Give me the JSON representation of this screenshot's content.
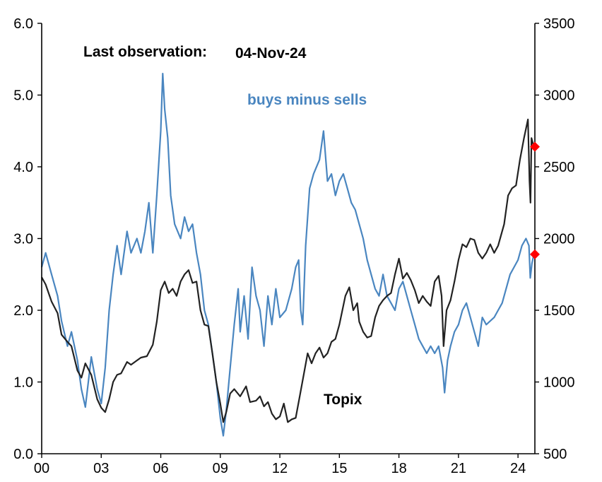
{
  "chart_data": {
    "type": "line",
    "title": "",
    "annotations": {
      "last_obs_label": "Last observation:",
      "last_obs_date": "04-Nov-24",
      "series1_label": "buys minus sells",
      "series2_label": "Topix"
    },
    "x_axis": {
      "range": [
        2000,
        2024.85
      ],
      "ticks": [
        {
          "value": 2000,
          "label": "00"
        },
        {
          "value": 2003,
          "label": "03"
        },
        {
          "value": 2006,
          "label": "06"
        },
        {
          "value": 2009,
          "label": "09"
        },
        {
          "value": 2012,
          "label": "12"
        },
        {
          "value": 2015,
          "label": "15"
        },
        {
          "value": 2018,
          "label": "18"
        },
        {
          "value": 2021,
          "label": "21"
        },
        {
          "value": 2024,
          "label": "24"
        }
      ]
    },
    "y_left": {
      "range": [
        0,
        6
      ],
      "ticks": [
        {
          "value": 0,
          "label": "0.0"
        },
        {
          "value": 1,
          "label": "1.0"
        },
        {
          "value": 2,
          "label": "2.0"
        },
        {
          "value": 3,
          "label": "3.0"
        },
        {
          "value": 4,
          "label": "4.0"
        },
        {
          "value": 5,
          "label": "5.0"
        },
        {
          "value": 6,
          "label": "6.0"
        }
      ]
    },
    "y_right": {
      "range": [
        500,
        3500
      ],
      "ticks": [
        {
          "value": 500,
          "label": "500"
        },
        {
          "value": 1000,
          "label": "1000"
        },
        {
          "value": 1500,
          "label": "1500"
        },
        {
          "value": 2000,
          "label": "2000"
        },
        {
          "value": 2500,
          "label": "2500"
        },
        {
          "value": 3000,
          "label": "3000"
        },
        {
          "value": 3500,
          "label": "3500"
        }
      ]
    },
    "series": [
      {
        "name": "buys minus sells",
        "axis": "left",
        "color": "#4a86c0",
        "points": [
          [
            2000.0,
            2.6
          ],
          [
            2000.2,
            2.8
          ],
          [
            2000.5,
            2.5
          ],
          [
            2000.8,
            2.2
          ],
          [
            2001.0,
            1.85
          ],
          [
            2001.3,
            1.5
          ],
          [
            2001.5,
            1.7
          ],
          [
            2001.8,
            1.3
          ],
          [
            2002.0,
            0.9
          ],
          [
            2002.2,
            0.65
          ],
          [
            2002.35,
            1.0
          ],
          [
            2002.5,
            1.35
          ],
          [
            2002.8,
            0.9
          ],
          [
            2003.0,
            0.7
          ],
          [
            2003.2,
            1.2
          ],
          [
            2003.4,
            2.0
          ],
          [
            2003.6,
            2.5
          ],
          [
            2003.8,
            2.9
          ],
          [
            2004.0,
            2.5
          ],
          [
            2004.3,
            3.1
          ],
          [
            2004.5,
            2.8
          ],
          [
            2004.8,
            3.0
          ],
          [
            2005.0,
            2.8
          ],
          [
            2005.2,
            3.1
          ],
          [
            2005.4,
            3.5
          ],
          [
            2005.6,
            2.8
          ],
          [
            2005.8,
            3.6
          ],
          [
            2006.0,
            4.5
          ],
          [
            2006.1,
            5.3
          ],
          [
            2006.2,
            4.8
          ],
          [
            2006.35,
            4.4
          ],
          [
            2006.5,
            3.6
          ],
          [
            2006.7,
            3.2
          ],
          [
            2007.0,
            3.0
          ],
          [
            2007.2,
            3.3
          ],
          [
            2007.4,
            3.1
          ],
          [
            2007.6,
            3.2
          ],
          [
            2007.8,
            2.8
          ],
          [
            2008.0,
            2.5
          ],
          [
            2008.2,
            2.0
          ],
          [
            2008.4,
            1.8
          ],
          [
            2008.6,
            1.4
          ],
          [
            2008.8,
            1.0
          ],
          [
            2009.0,
            0.5
          ],
          [
            2009.15,
            0.25
          ],
          [
            2009.3,
            0.6
          ],
          [
            2009.5,
            1.2
          ],
          [
            2009.7,
            1.8
          ],
          [
            2009.9,
            2.3
          ],
          [
            2010.0,
            1.7
          ],
          [
            2010.2,
            2.2
          ],
          [
            2010.4,
            1.6
          ],
          [
            2010.6,
            2.6
          ],
          [
            2010.8,
            2.2
          ],
          [
            2011.0,
            2.0
          ],
          [
            2011.2,
            1.5
          ],
          [
            2011.4,
            2.2
          ],
          [
            2011.6,
            1.8
          ],
          [
            2011.8,
            2.3
          ],
          [
            2012.0,
            1.9
          ],
          [
            2012.3,
            2.0
          ],
          [
            2012.6,
            2.3
          ],
          [
            2012.8,
            2.6
          ],
          [
            2012.95,
            2.7
          ],
          [
            2013.05,
            2.0
          ],
          [
            2013.15,
            1.8
          ],
          [
            2013.3,
            2.9
          ],
          [
            2013.5,
            3.7
          ],
          [
            2013.7,
            3.9
          ],
          [
            2014.0,
            4.1
          ],
          [
            2014.2,
            4.5
          ],
          [
            2014.4,
            3.8
          ],
          [
            2014.6,
            3.9
          ],
          [
            2014.8,
            3.6
          ],
          [
            2015.0,
            3.8
          ],
          [
            2015.2,
            3.9
          ],
          [
            2015.4,
            3.7
          ],
          [
            2015.6,
            3.5
          ],
          [
            2015.8,
            3.4
          ],
          [
            2016.0,
            3.2
          ],
          [
            2016.2,
            3.0
          ],
          [
            2016.4,
            2.7
          ],
          [
            2016.6,
            2.5
          ],
          [
            2016.8,
            2.3
          ],
          [
            2017.0,
            2.2
          ],
          [
            2017.2,
            2.5
          ],
          [
            2017.4,
            2.2
          ],
          [
            2017.6,
            2.1
          ],
          [
            2017.8,
            2.0
          ],
          [
            2018.0,
            2.3
          ],
          [
            2018.2,
            2.4
          ],
          [
            2018.4,
            2.2
          ],
          [
            2018.6,
            2.0
          ],
          [
            2018.8,
            1.8
          ],
          [
            2019.0,
            1.6
          ],
          [
            2019.2,
            1.5
          ],
          [
            2019.4,
            1.4
          ],
          [
            2019.6,
            1.5
          ],
          [
            2019.8,
            1.4
          ],
          [
            2020.0,
            1.5
          ],
          [
            2020.2,
            1.2
          ],
          [
            2020.3,
            0.85
          ],
          [
            2020.45,
            1.3
          ],
          [
            2020.6,
            1.5
          ],
          [
            2020.8,
            1.7
          ],
          [
            2021.0,
            1.8
          ],
          [
            2021.2,
            2.0
          ],
          [
            2021.4,
            2.1
          ],
          [
            2021.6,
            1.9
          ],
          [
            2021.8,
            1.7
          ],
          [
            2022.0,
            1.5
          ],
          [
            2022.2,
            1.9
          ],
          [
            2022.4,
            1.8
          ],
          [
            2022.6,
            1.85
          ],
          [
            2022.8,
            1.9
          ],
          [
            2023.0,
            2.0
          ],
          [
            2023.2,
            2.1
          ],
          [
            2023.4,
            2.3
          ],
          [
            2023.6,
            2.5
          ],
          [
            2023.8,
            2.6
          ],
          [
            2024.0,
            2.7
          ],
          [
            2024.2,
            2.9
          ],
          [
            2024.4,
            3.0
          ],
          [
            2024.55,
            2.9
          ],
          [
            2024.62,
            2.45
          ],
          [
            2024.7,
            2.65
          ],
          [
            2024.8,
            2.78
          ]
        ]
      },
      {
        "name": "Topix",
        "axis": "right",
        "color": "#222222",
        "points": [
          [
            2000.0,
            1730
          ],
          [
            2000.2,
            1680
          ],
          [
            2000.5,
            1560
          ],
          [
            2000.8,
            1480
          ],
          [
            2001.0,
            1330
          ],
          [
            2001.3,
            1280
          ],
          [
            2001.5,
            1250
          ],
          [
            2001.8,
            1080
          ],
          [
            2002.0,
            1030
          ],
          [
            2002.2,
            1130
          ],
          [
            2002.5,
            1050
          ],
          [
            2002.8,
            880
          ],
          [
            2003.0,
            820
          ],
          [
            2003.2,
            790
          ],
          [
            2003.4,
            880
          ],
          [
            2003.6,
            1000
          ],
          [
            2003.8,
            1050
          ],
          [
            2004.0,
            1060
          ],
          [
            2004.3,
            1140
          ],
          [
            2004.5,
            1120
          ],
          [
            2004.8,
            1150
          ],
          [
            2005.0,
            1170
          ],
          [
            2005.3,
            1180
          ],
          [
            2005.6,
            1260
          ],
          [
            2005.8,
            1420
          ],
          [
            2006.0,
            1640
          ],
          [
            2006.2,
            1700
          ],
          [
            2006.4,
            1620
          ],
          [
            2006.6,
            1650
          ],
          [
            2006.8,
            1600
          ],
          [
            2007.0,
            1700
          ],
          [
            2007.2,
            1750
          ],
          [
            2007.4,
            1780
          ],
          [
            2007.6,
            1690
          ],
          [
            2007.8,
            1700
          ],
          [
            2008.0,
            1500
          ],
          [
            2008.2,
            1400
          ],
          [
            2008.4,
            1390
          ],
          [
            2008.6,
            1200
          ],
          [
            2008.8,
            1000
          ],
          [
            2009.0,
            850
          ],
          [
            2009.15,
            720
          ],
          [
            2009.3,
            790
          ],
          [
            2009.5,
            920
          ],
          [
            2009.7,
            950
          ],
          [
            2010.0,
            900
          ],
          [
            2010.3,
            970
          ],
          [
            2010.5,
            860
          ],
          [
            2010.8,
            870
          ],
          [
            2011.0,
            900
          ],
          [
            2011.2,
            830
          ],
          [
            2011.4,
            860
          ],
          [
            2011.6,
            780
          ],
          [
            2011.8,
            740
          ],
          [
            2012.0,
            760
          ],
          [
            2012.2,
            850
          ],
          [
            2012.4,
            720
          ],
          [
            2012.6,
            740
          ],
          [
            2012.8,
            750
          ],
          [
            2013.0,
            900
          ],
          [
            2013.2,
            1050
          ],
          [
            2013.4,
            1200
          ],
          [
            2013.6,
            1130
          ],
          [
            2013.8,
            1200
          ],
          [
            2014.0,
            1240
          ],
          [
            2014.2,
            1170
          ],
          [
            2014.4,
            1200
          ],
          [
            2014.6,
            1280
          ],
          [
            2014.8,
            1300
          ],
          [
            2015.0,
            1400
          ],
          [
            2015.3,
            1600
          ],
          [
            2015.5,
            1660
          ],
          [
            2015.7,
            1500
          ],
          [
            2015.9,
            1550
          ],
          [
            2016.0,
            1420
          ],
          [
            2016.2,
            1350
          ],
          [
            2016.4,
            1310
          ],
          [
            2016.6,
            1320
          ],
          [
            2016.8,
            1450
          ],
          [
            2017.0,
            1530
          ],
          [
            2017.2,
            1570
          ],
          [
            2017.4,
            1600
          ],
          [
            2017.6,
            1620
          ],
          [
            2017.8,
            1750
          ],
          [
            2018.0,
            1860
          ],
          [
            2018.2,
            1720
          ],
          [
            2018.4,
            1760
          ],
          [
            2018.6,
            1710
          ],
          [
            2018.8,
            1640
          ],
          [
            2019.0,
            1550
          ],
          [
            2019.2,
            1600
          ],
          [
            2019.4,
            1560
          ],
          [
            2019.6,
            1530
          ],
          [
            2019.8,
            1700
          ],
          [
            2020.0,
            1740
          ],
          [
            2020.15,
            1600
          ],
          [
            2020.25,
            1250
          ],
          [
            2020.4,
            1500
          ],
          [
            2020.6,
            1570
          ],
          [
            2020.8,
            1700
          ],
          [
            2021.0,
            1850
          ],
          [
            2021.2,
            1960
          ],
          [
            2021.4,
            1940
          ],
          [
            2021.6,
            2000
          ],
          [
            2021.8,
            1990
          ],
          [
            2022.0,
            1900
          ],
          [
            2022.2,
            1860
          ],
          [
            2022.4,
            1900
          ],
          [
            2022.6,
            1960
          ],
          [
            2022.8,
            1900
          ],
          [
            2023.0,
            1950
          ],
          [
            2023.3,
            2100
          ],
          [
            2023.5,
            2300
          ],
          [
            2023.7,
            2350
          ],
          [
            2023.9,
            2370
          ],
          [
            2024.1,
            2550
          ],
          [
            2024.3,
            2700
          ],
          [
            2024.5,
            2830
          ],
          [
            2024.58,
            2400
          ],
          [
            2024.63,
            2250
          ],
          [
            2024.68,
            2700
          ],
          [
            2024.8,
            2640
          ]
        ]
      }
    ],
    "markers": [
      {
        "series": "buys minus sells",
        "x": 2024.85,
        "value": 2.78,
        "axis": "left",
        "color": "#ff0000"
      },
      {
        "series": "Topix",
        "x": 2024.85,
        "value": 2640,
        "axis": "right",
        "color": "#ff0000"
      }
    ]
  }
}
